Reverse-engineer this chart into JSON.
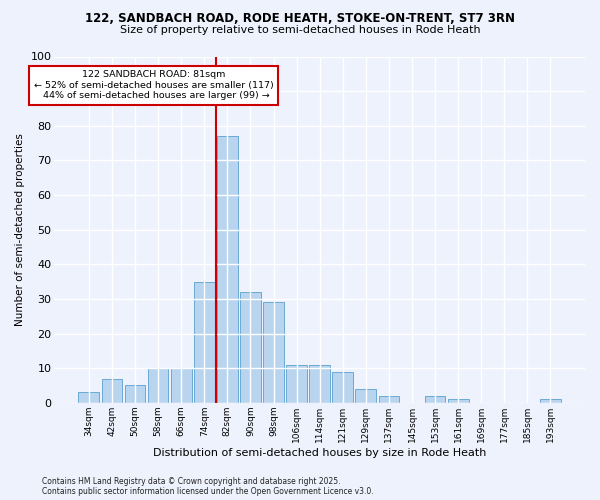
{
  "title1": "122, SANDBACH ROAD, RODE HEATH, STOKE-ON-TRENT, ST7 3RN",
  "title2": "Size of property relative to semi-detached houses in Rode Heath",
  "xlabel": "Distribution of semi-detached houses by size in Rode Heath",
  "ylabel": "Number of semi-detached properties",
  "bar_labels": [
    "34sqm",
    "42sqm",
    "50sqm",
    "58sqm",
    "66sqm",
    "74sqm",
    "82sqm",
    "90sqm",
    "98sqm",
    "106sqm",
    "114sqm",
    "121sqm",
    "129sqm",
    "137sqm",
    "145sqm",
    "153sqm",
    "161sqm",
    "169sqm",
    "177sqm",
    "185sqm",
    "193sqm"
  ],
  "bar_values": [
    3,
    7,
    5,
    10,
    10,
    35,
    77,
    32,
    29,
    11,
    11,
    9,
    4,
    2,
    0,
    2,
    1,
    0,
    0,
    0,
    1
  ],
  "bar_color": "#b8d4ee",
  "bar_edge_color": "#6aaad4",
  "vline_color": "#cc0000",
  "vline_x_index": 6,
  "annotation_text": "122 SANDBACH ROAD: 81sqm\n← 52% of semi-detached houses are smaller (117)\n  44% of semi-detached houses are larger (99) →",
  "annotation_box_color": "#ffffff",
  "annotation_box_edge": "#cc0000",
  "ylim": [
    0,
    100
  ],
  "yticks": [
    0,
    10,
    20,
    30,
    40,
    50,
    60,
    70,
    80,
    90,
    100
  ],
  "bg_color": "#eef2fc",
  "grid_color": "#ffffff",
  "footer1": "Contains HM Land Registry data © Crown copyright and database right 2025.",
  "footer2": "Contains public sector information licensed under the Open Government Licence v3.0."
}
